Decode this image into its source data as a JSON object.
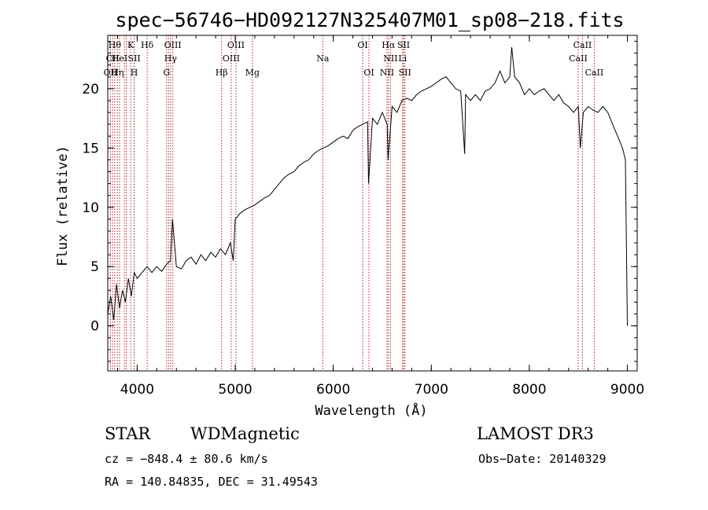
{
  "chart_data": {
    "type": "line",
    "title": "spec−56746−HD092127N325407M01_sp08−218.fits",
    "xlabel": "Wavelength (Å)",
    "ylabel": "Flux (relative)",
    "xlim": [
      3700,
      9100
    ],
    "ylim": [
      -3.8,
      24.5
    ],
    "xticks": [
      4000,
      5000,
      6000,
      7000,
      8000,
      9000
    ],
    "yticks": [
      0,
      5,
      10,
      15,
      20
    ],
    "series": [
      {
        "x": [
          3700,
          3730,
          3760,
          3790,
          3820,
          3850,
          3880,
          3910,
          3940,
          3970,
          4000,
          4050,
          4100,
          4150,
          4200,
          4250,
          4300,
          4340,
          4360,
          4400,
          4450,
          4500,
          4550,
          4600,
          4650,
          4700,
          4750,
          4800,
          4850,
          4900,
          4950,
          4980,
          5000,
          5050,
          5100,
          5150,
          5200,
          5250,
          5300,
          5350,
          5400,
          5450,
          5500,
          5550,
          5600,
          5650,
          5700,
          5750,
          5800,
          5850,
          5900,
          5950,
          6000,
          6050,
          6100,
          6150,
          6200,
          6250,
          6300,
          6350,
          6360,
          6400,
          6450,
          6500,
          6550,
          6560,
          6600,
          6650,
          6700,
          6750,
          6800,
          6850,
          6900,
          6950,
          7000,
          7050,
          7100,
          7150,
          7200,
          7250,
          7300,
          7340,
          7350,
          7400,
          7450,
          7500,
          7550,
          7600,
          7650,
          7700,
          7750,
          7800,
          7820,
          7850,
          7900,
          7950,
          8000,
          8050,
          8100,
          8150,
          8200,
          8250,
          8300,
          8350,
          8400,
          8450,
          8500,
          8520,
          8550,
          8600,
          8650,
          8700,
          8750,
          8800,
          8850,
          8900,
          8950,
          8980,
          9000
        ],
        "y": [
          1.0,
          2.5,
          0.5,
          3.5,
          1.5,
          3.0,
          2.0,
          4.0,
          2.5,
          4.5,
          4.0,
          4.5,
          5.0,
          4.5,
          5.0,
          4.6,
          5.2,
          5.5,
          9.0,
          5.0,
          4.8,
          5.5,
          5.8,
          5.2,
          6.0,
          5.5,
          6.2,
          5.8,
          6.5,
          6.0,
          7.0,
          5.5,
          9.0,
          9.5,
          9.8,
          10.0,
          10.2,
          10.5,
          10.8,
          11.0,
          11.5,
          12.0,
          12.5,
          12.8,
          13.0,
          13.5,
          13.8,
          14.0,
          14.5,
          14.8,
          15.0,
          15.2,
          15.5,
          15.8,
          16.0,
          15.8,
          16.5,
          16.8,
          17.0,
          17.2,
          12.0,
          17.5,
          17.0,
          18.0,
          17.0,
          14.0,
          18.5,
          18.0,
          19.0,
          19.2,
          19.0,
          19.5,
          19.8,
          20.0,
          20.2,
          20.5,
          20.8,
          21.0,
          20.5,
          20.0,
          19.8,
          14.5,
          19.5,
          19.0,
          19.5,
          19.0,
          19.8,
          20.0,
          20.5,
          21.5,
          20.5,
          21.0,
          23.5,
          21.0,
          20.5,
          19.5,
          20.0,
          19.5,
          19.8,
          20.0,
          19.5,
          19.0,
          19.5,
          18.8,
          18.5,
          18.0,
          18.5,
          15.0,
          18.0,
          18.5,
          18.2,
          18.0,
          18.5,
          18.0,
          17.0,
          16.0,
          15.0,
          14.0,
          0.0
        ]
      }
    ],
    "line_markers": [
      {
        "wavelength": 3727,
        "label": "OII",
        "row": 3
      },
      {
        "wavelength": 3750,
        "label": "CII",
        "row": 2
      },
      {
        "wavelength": 3771,
        "label": "Hθ",
        "row": 1
      },
      {
        "wavelength": 3798,
        "label": "Hη",
        "row": 3
      },
      {
        "wavelength": 3820,
        "label": "HeI",
        "row": 2
      },
      {
        "wavelength": 3869,
        "label": "",
        "row": 0
      },
      {
        "wavelength": 3889,
        "label": "",
        "row": 0
      },
      {
        "wavelength": 3934,
        "label": "K",
        "row": 1
      },
      {
        "wavelength": 3969,
        "label": "H",
        "row": 3
      },
      {
        "wavelength": 3970,
        "label": "SII",
        "row": 2
      },
      {
        "wavelength": 4102,
        "label": "Hδ",
        "row": 1
      },
      {
        "wavelength": 4300,
        "label": "G",
        "row": 3
      },
      {
        "wavelength": 4320,
        "label": "",
        "row": 0
      },
      {
        "wavelength": 4341,
        "label": "Hγ",
        "row": 2
      },
      {
        "wavelength": 4363,
        "label": "OIII",
        "row": 1
      },
      {
        "wavelength": 4861,
        "label": "Hβ",
        "row": 3
      },
      {
        "wavelength": 4959,
        "label": "OIII",
        "row": 2
      },
      {
        "wavelength": 5007,
        "label": "OIII",
        "row": 1
      },
      {
        "wavelength": 5175,
        "label": "Mg",
        "row": 3
      },
      {
        "wavelength": 5893,
        "label": "Na",
        "row": 2
      },
      {
        "wavelength": 6300,
        "label": "OI",
        "row": 1
      },
      {
        "wavelength": 6364,
        "label": "OI",
        "row": 3
      },
      {
        "wavelength": 6548,
        "label": "NII",
        "row": 3
      },
      {
        "wavelength": 6563,
        "label": "Hα",
        "row": 1
      },
      {
        "wavelength": 6584,
        "label": "NII",
        "row": 2
      },
      {
        "wavelength": 6707,
        "label": "Li",
        "row": 2
      },
      {
        "wavelength": 6717,
        "label": "SII",
        "row": 1
      },
      {
        "wavelength": 6731,
        "label": "SII",
        "row": 3
      },
      {
        "wavelength": 8498,
        "label": "CaII",
        "row": 2
      },
      {
        "wavelength": 8542,
        "label": "CaII",
        "row": 1
      },
      {
        "wavelength": 8662,
        "label": "CaII",
        "row": 3
      }
    ]
  },
  "info": {
    "class": "STAR",
    "subclass": "WDMagnetic",
    "survey": "LAMOST DR3",
    "cz": "cz = −848.4 ± 80.6 km/s",
    "obs_date": "Obs−Date: 20140329",
    "radec": "RA = 140.84835, DEC =  31.49543"
  },
  "colors": {
    "line": "#000000",
    "marker": "#b22222",
    "background": "#ffffff"
  }
}
